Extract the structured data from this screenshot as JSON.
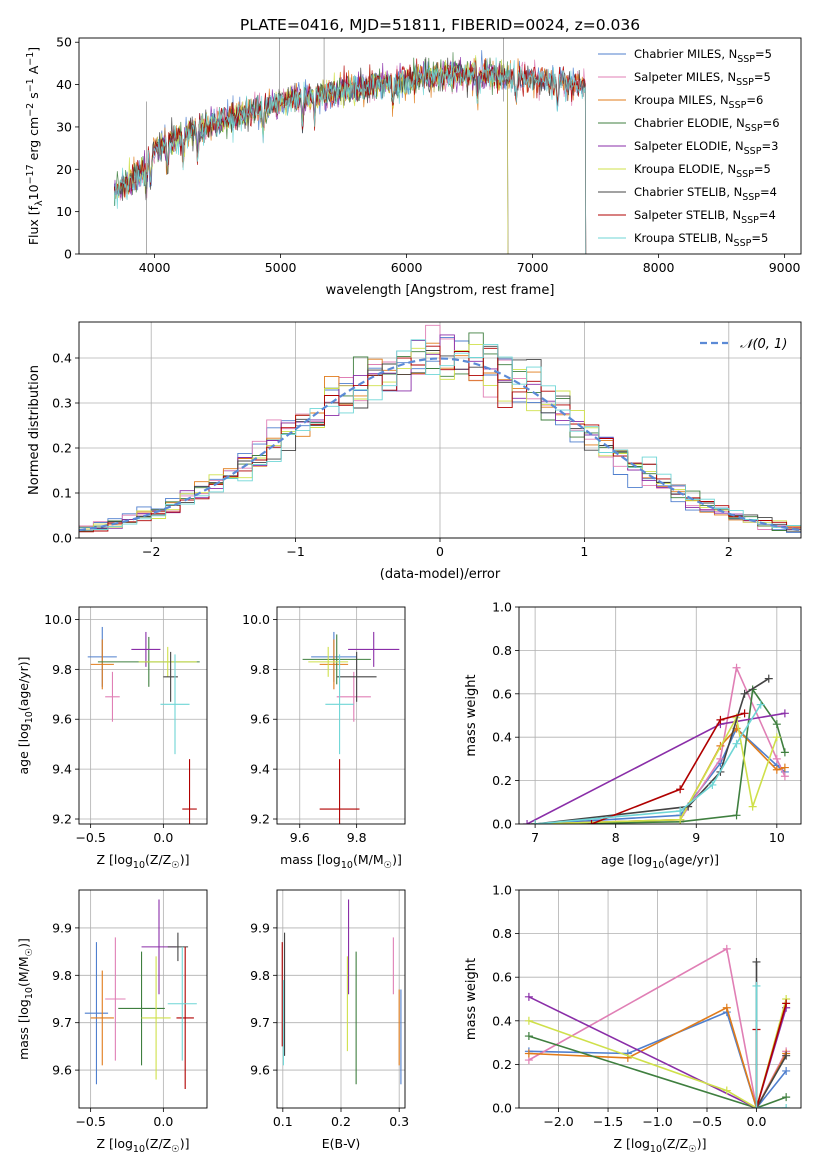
{
  "figure": {
    "title": "PLATE=0416, MJD=51811, FIBERID=0024, z=0.036"
  },
  "colors": [
    "#4f7fce",
    "#e07fb5",
    "#e07b1a",
    "#3f7f3f",
    "#8a2ea8",
    "#cfe04a",
    "#444444",
    "#b00000",
    "#6fd6d6"
  ],
  "chart_data": [
    {
      "id": "spectrum",
      "type": "line",
      "xlabel": "wavelength [Angstrom, rest frame]",
      "ylabel": "Flux [f_λ 10^-17 erg cm^-2 s^-1 A^-1]",
      "xlim": [
        3400,
        9130
      ],
      "ylim": [
        0,
        51
      ],
      "xticks": [
        4000,
        5000,
        6000,
        7000,
        8000,
        9000
      ],
      "yticks": [
        0,
        10,
        20,
        30,
        40,
        50
      ],
      "grid": false,
      "legend": "upper-right",
      "trend": {
        "x": [
          3680,
          3900,
          4000,
          4300,
          4600,
          5000,
          5400,
          5800,
          6200,
          6600,
          7000,
          7400
        ],
        "y": [
          15,
          19,
          25,
          29,
          32,
          36,
          38,
          40,
          42,
          42.5,
          41.5,
          40
        ]
      },
      "series": [
        {
          "name": "Chabrier MILES, N_SSP=5",
          "end": 7420
        },
        {
          "name": "Salpeter MILES, N_SSP=5",
          "end": 7420
        },
        {
          "name": "Kroupa MILES, N_SSP=6",
          "end": 7420
        },
        {
          "name": "Chabrier ELODIE, N_SSP=6",
          "end": 6800
        },
        {
          "name": "Salpeter ELODIE, N_SSP=3",
          "end": 6800
        },
        {
          "name": "Kroupa ELODIE, N_SSP=5",
          "end": 6800
        },
        {
          "name": "Chabrier STELIB, N_SSP=4",
          "end": 7420
        },
        {
          "name": "Salpeter STELIB, N_SSP=4",
          "end": 7420
        },
        {
          "name": "Kroupa STELIB, N_SSP=5",
          "end": 7420
        }
      ]
    },
    {
      "id": "residuals",
      "type": "bar",
      "xlabel": "(data-model)/error",
      "ylabel": "Normed distribution",
      "xlim": [
        -2.5,
        2.5
      ],
      "ylim": [
        0,
        0.48
      ],
      "xticks": [
        -2,
        -1,
        0,
        1,
        2
      ],
      "yticks": [
        0.0,
        0.1,
        0.2,
        0.3,
        0.4
      ],
      "grid": true,
      "legend": "upper-right",
      "gaussian": {
        "name": "N(0,1)",
        "mean": 0,
        "sigma": 1
      },
      "bin_width": 0.1
    },
    {
      "id": "age_vs_Z",
      "type": "scatter",
      "xlabel": "Z [log10(Z/Z☉)]",
      "ylabel": "age [log10(age/yr)]",
      "xlim": [
        -0.58,
        0.3
      ],
      "ylim": [
        9.18,
        10.05
      ],
      "xticks": [
        -0.5,
        0.0
      ],
      "yticks": [
        9.2,
        9.4,
        9.6,
        9.8,
        10.0
      ],
      "grid": true,
      "points": [
        {
          "x": -0.42,
          "y": 9.85,
          "xerr": 0.1,
          "yerr": 0.12
        },
        {
          "x": -0.35,
          "y": 9.69,
          "xerr": 0.05,
          "yerr": 0.1
        },
        {
          "x": -0.42,
          "y": 9.82,
          "xerr": 0.08,
          "yerr": 0.1
        },
        {
          "x": -0.1,
          "y": 9.83,
          "xerr": 0.35,
          "yerr": 0.1
        },
        {
          "x": -0.12,
          "y": 9.88,
          "xerr": 0.1,
          "yerr": 0.07
        },
        {
          "x": 0.03,
          "y": 9.83,
          "xerr": 0.2,
          "yerr": 0.06
        },
        {
          "x": 0.05,
          "y": 9.77,
          "xerr": 0.05,
          "yerr": 0.1
        },
        {
          "x": 0.18,
          "y": 9.24,
          "xerr": 0.05,
          "yerr": 0.2
        },
        {
          "x": 0.08,
          "y": 9.66,
          "xerr": 0.1,
          "yerr": 0.2
        }
      ]
    },
    {
      "id": "age_vs_mass",
      "type": "scatter",
      "xlabel": "mass [log10(M/M☉)]",
      "ylabel": "",
      "xlim": [
        9.52,
        9.97
      ],
      "ylim": [
        9.18,
        10.05
      ],
      "xticks": [
        9.6,
        9.8
      ],
      "yticks": [
        9.2,
        9.4,
        9.6,
        9.8,
        10.0
      ],
      "grid": true,
      "points": [
        {
          "x": 9.72,
          "y": 9.85,
          "xerr": 0.08,
          "yerr": 0.1
        },
        {
          "x": 9.79,
          "y": 9.69,
          "xerr": 0.06,
          "yerr": 0.1
        },
        {
          "x": 9.72,
          "y": 9.82,
          "xerr": 0.05,
          "yerr": 0.1
        },
        {
          "x": 9.73,
          "y": 9.84,
          "xerr": 0.12,
          "yerr": 0.1
        },
        {
          "x": 9.86,
          "y": 9.88,
          "xerr": 0.09,
          "yerr": 0.07
        },
        {
          "x": 9.7,
          "y": 9.83,
          "xerr": 0.07,
          "yerr": 0.06
        },
        {
          "x": 9.8,
          "y": 9.77,
          "xerr": 0.07,
          "yerr": 0.1
        },
        {
          "x": 9.74,
          "y": 9.24,
          "xerr": 0.07,
          "yerr": 0.2
        },
        {
          "x": 9.74,
          "y": 9.66,
          "xerr": 0.05,
          "yerr": 0.2
        }
      ]
    },
    {
      "id": "mass_weight_vs_age",
      "type": "line",
      "xlabel": "age [log10(age/yr)]",
      "ylabel": "mass weight",
      "xlim": [
        6.8,
        10.3
      ],
      "ylim": [
        0,
        1.0
      ],
      "xticks": [
        7,
        8,
        9,
        10
      ],
      "yticks": [
        0.0,
        0.2,
        0.4,
        0.6,
        0.8,
        1.0
      ],
      "grid": true,
      "series": [
        {
          "x": [
            7.0,
            8.8,
            9.3,
            9.5,
            10.0,
            10.1
          ],
          "y": [
            0.0,
            0.04,
            0.28,
            0.44,
            0.27,
            0.24
          ]
        },
        {
          "x": [
            7.0,
            8.8,
            9.3,
            9.5,
            10.0,
            10.1
          ],
          "y": [
            0.0,
            0.02,
            0.3,
            0.72,
            0.3,
            0.22
          ]
        },
        {
          "x": [
            7.0,
            8.8,
            9.3,
            9.5,
            10.0,
            10.1
          ],
          "y": [
            0.0,
            0.02,
            0.36,
            0.44,
            0.25,
            0.26
          ]
        },
        {
          "x": [
            7.0,
            8.8,
            9.5,
            9.7,
            10.0,
            10.1
          ],
          "y": [
            0.0,
            0.01,
            0.04,
            0.62,
            0.46,
            0.33
          ]
        },
        {
          "x": [
            6.9,
            9.3,
            10.1
          ],
          "y": [
            0.0,
            0.46,
            0.51
          ]
        },
        {
          "x": [
            7.0,
            8.8,
            9.5,
            9.7,
            10.0
          ],
          "y": [
            0.0,
            0.02,
            0.49,
            0.08,
            0.4
          ]
        },
        {
          "x": [
            7.0,
            8.9,
            9.3,
            9.6,
            9.9
          ],
          "y": [
            0.0,
            0.08,
            0.24,
            0.6,
            0.67
          ]
        },
        {
          "x": [
            7.7,
            8.8,
            9.3,
            9.6
          ],
          "y": [
            0.0,
            0.16,
            0.48,
            0.51
          ]
        },
        {
          "x": [
            7.0,
            8.8,
            9.2,
            9.5,
            9.8
          ],
          "y": [
            0.0,
            0.06,
            0.18,
            0.37,
            0.55
          ]
        }
      ]
    },
    {
      "id": "mass_vs_Z",
      "type": "scatter",
      "xlabel": "Z [log10(Z/Z☉)]",
      "ylabel": "mass [log10(M/M☉)]",
      "xlim": [
        -0.58,
        0.3
      ],
      "ylim": [
        9.52,
        9.98
      ],
      "xticks": [
        -0.5,
        0.0
      ],
      "yticks": [
        9.6,
        9.7,
        9.8,
        9.9
      ],
      "grid": true,
      "points": [
        {
          "x": -0.46,
          "y": 9.72,
          "xerr": 0.08,
          "yerr": 0.15
        },
        {
          "x": -0.33,
          "y": 9.75,
          "xerr": 0.07,
          "yerr": 0.13
        },
        {
          "x": -0.42,
          "y": 9.71,
          "xerr": 0.08,
          "yerr": 0.1
        },
        {
          "x": -0.15,
          "y": 9.73,
          "xerr": 0.16,
          "yerr": 0.12
        },
        {
          "x": -0.03,
          "y": 9.86,
          "xerr": 0.12,
          "yerr": 0.1
        },
        {
          "x": -0.05,
          "y": 9.71,
          "xerr": 0.1,
          "yerr": 0.13
        },
        {
          "x": 0.1,
          "y": 9.86,
          "xerr": 0.07,
          "yerr": 0.03
        },
        {
          "x": 0.15,
          "y": 9.71,
          "xerr": 0.06,
          "yerr": 0.15
        },
        {
          "x": 0.13,
          "y": 9.74,
          "xerr": 0.1,
          "yerr": 0.12
        }
      ]
    },
    {
      "id": "mass_vs_ebv",
      "type": "scatter",
      "xlabel": "E(B-V)",
      "ylabel": "",
      "xlim": [
        0.09,
        0.31
      ],
      "ylim": [
        9.52,
        9.98
      ],
      "xticks": [
        0.1,
        0.2,
        0.3
      ],
      "yticks": [
        9.6,
        9.7,
        9.8,
        9.9
      ],
      "grid": true,
      "points": [
        {
          "x": 0.303,
          "y": 9.67,
          "yerr": 0.1
        },
        {
          "x": 0.29,
          "y": 9.82,
          "yerr": 0.06
        },
        {
          "x": 0.3,
          "y": 9.69,
          "yerr": 0.08
        },
        {
          "x": 0.226,
          "y": 9.71,
          "yerr": 0.14
        },
        {
          "x": 0.213,
          "y": 9.86,
          "yerr": 0.1
        },
        {
          "x": 0.211,
          "y": 9.74,
          "yerr": 0.1
        },
        {
          "x": 0.103,
          "y": 9.76,
          "yerr": 0.13
        },
        {
          "x": 0.099,
          "y": 9.76,
          "yerr": 0.11
        },
        {
          "x": 0.101,
          "y": 9.7,
          "yerr": 0.09
        }
      ]
    },
    {
      "id": "mass_weight_vs_Z",
      "type": "line",
      "xlabel": "Z [log10(Z/Z☉)]",
      "ylabel": "mass weight",
      "xlim": [
        -2.4,
        0.45
      ],
      "ylim": [
        0,
        1.0
      ],
      "xticks": [
        -2.0,
        -1.5,
        -1.0,
        -0.5,
        0.0
      ],
      "yticks": [
        0.0,
        0.2,
        0.4,
        0.6,
        0.8,
        1.0
      ],
      "grid": true,
      "series": [
        {
          "x": [
            -2.3,
            -1.3,
            -0.3,
            0.0,
            0.3
          ],
          "y": [
            0.26,
            0.25,
            0.44,
            0.0,
            0.17
          ]
        },
        {
          "x": [
            -2.3,
            -0.3,
            0.0,
            0.3
          ],
          "y": [
            0.22,
            0.73,
            0.0,
            0.26
          ]
        },
        {
          "x": [
            -2.3,
            -1.3,
            -0.3,
            0.0,
            0.3
          ],
          "y": [
            0.25,
            0.23,
            0.46,
            0.0,
            0.25
          ]
        },
        {
          "x": [
            -2.3,
            0.0,
            0.3
          ],
          "y": [
            0.33,
            0.0,
            0.05
          ]
        },
        {
          "x": [
            -2.3,
            0.0,
            0.3
          ],
          "y": [
            0.51,
            0.0,
            0.46
          ]
        },
        {
          "x": [
            -2.3,
            -0.3,
            0.0,
            0.3
          ],
          "y": [
            0.4,
            0.08,
            0.0,
            0.5
          ]
        },
        {
          "x": [
            0.0,
            0.0,
            0.3
          ],
          "y": [
            0.67,
            0.0,
            0.24
          ]
        },
        {
          "x": [
            0.0,
            0.0,
            0.3
          ],
          "y": [
            0.36,
            0.0,
            0.48
          ]
        },
        {
          "x": [
            0.0,
            0.0,
            0.3
          ],
          "y": [
            0.56,
            0.0,
            0.0
          ]
        }
      ]
    }
  ]
}
